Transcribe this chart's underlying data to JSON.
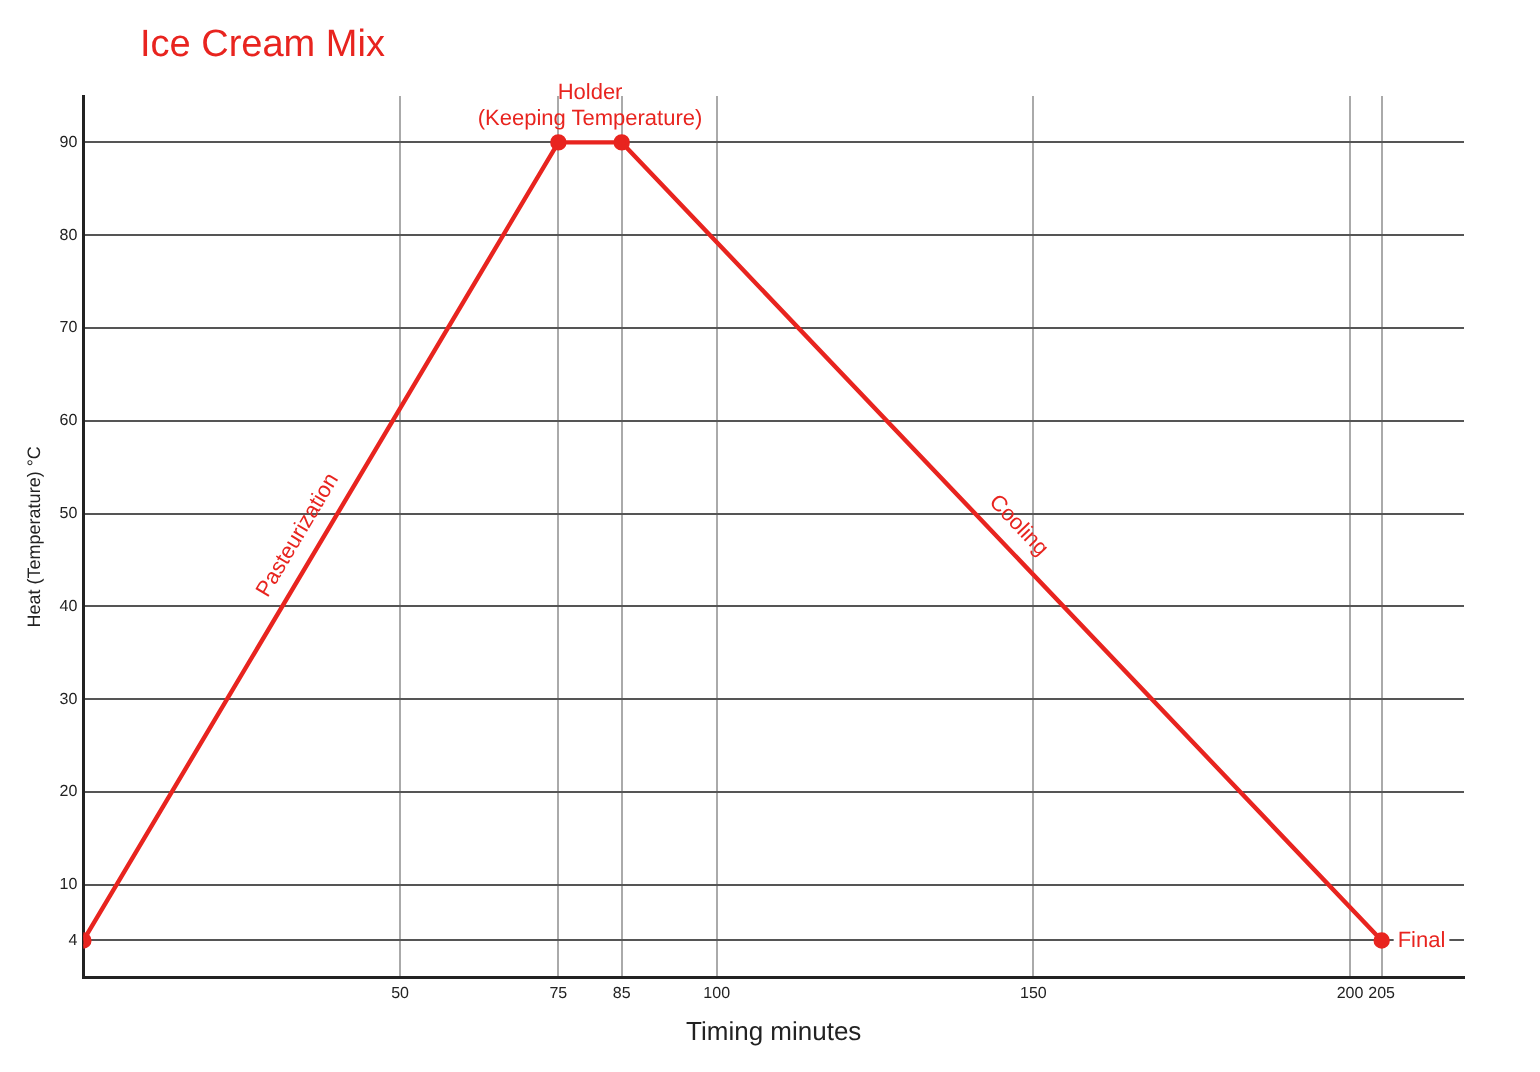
{
  "chart_data": {
    "type": "line",
    "title": "Ice Cream Mix",
    "xlabel": "Timing minutes",
    "ylabel": "Heat (Temperature) °C",
    "x": [
      0,
      75,
      85,
      205
    ],
    "series": [
      {
        "color": "#e8241f",
        "values": [
          4,
          90,
          90,
          4
        ]
      }
    ],
    "xlim": [
      0,
      218
    ],
    "xticks": [
      50,
      75,
      85,
      100,
      150,
      200,
      205
    ],
    "ylim": [
      0,
      95
    ],
    "yticks": [
      4,
      10,
      20,
      30,
      40,
      50,
      60,
      70,
      80,
      90
    ],
    "grid": true,
    "legend": false,
    "marker": "circle",
    "line_style": "solid",
    "annotations": [
      {
        "text": "Holder\n(Keeping Temperature)",
        "x": 80,
        "y": 90
      },
      {
        "text": "Pasteurization",
        "x": 37,
        "y": 46.4
      },
      {
        "text": "Cooling",
        "x": 145,
        "y": 47
      },
      {
        "text": "Final",
        "x": 205,
        "y": 4
      }
    ]
  }
}
